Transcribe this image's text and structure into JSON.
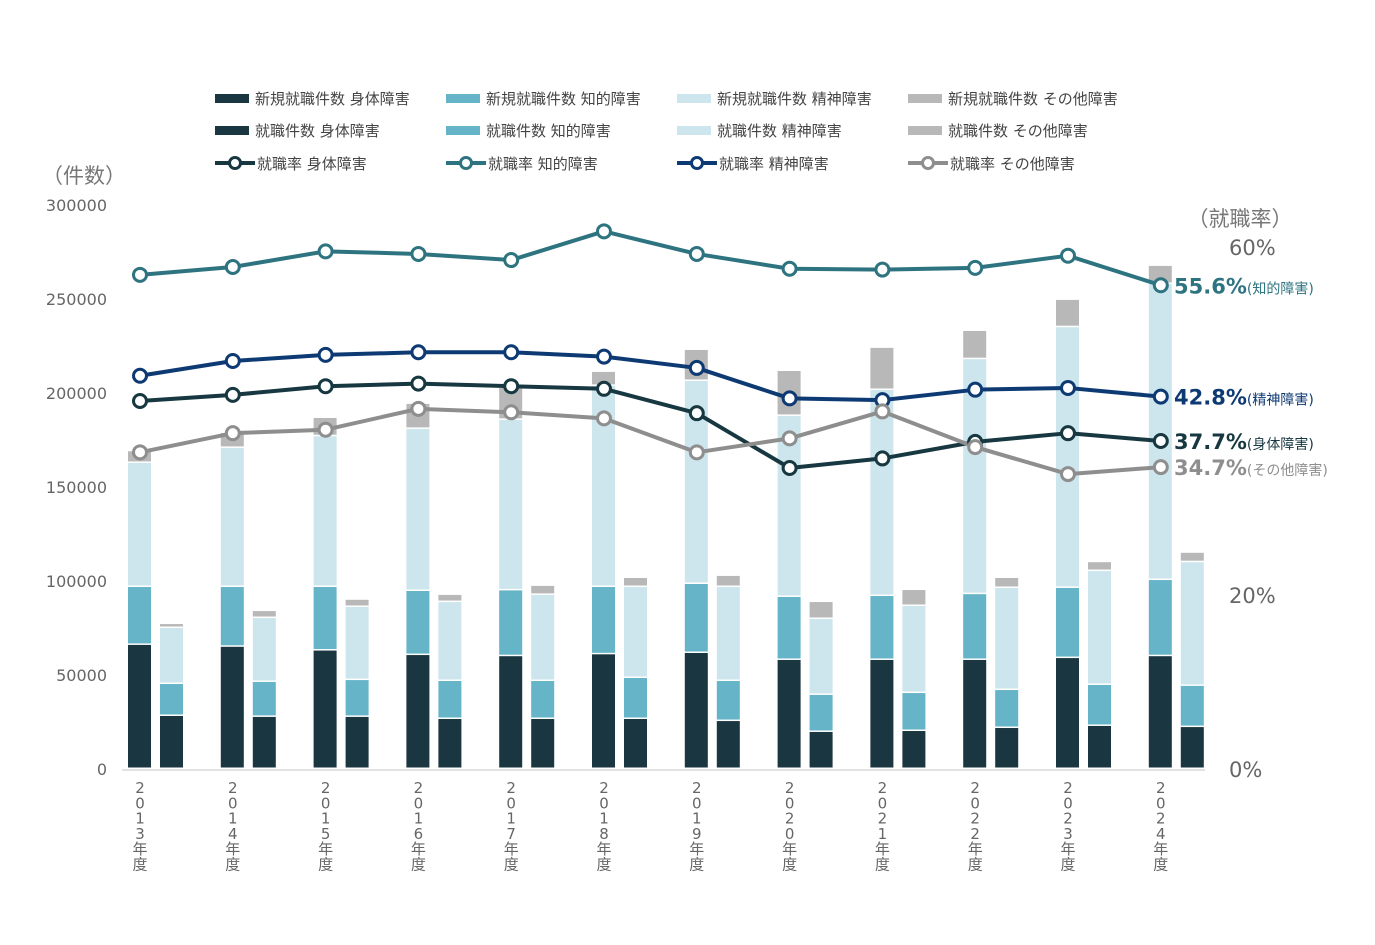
{
  "chart_data": {
    "type": "bar",
    "subtype": "grouped-stacked-bar-with-lines",
    "categories": [
      "2013年度",
      "2014年度",
      "2015年度",
      "2016年度",
      "2017年度",
      "2018年度",
      "2019年度",
      "2020年度",
      "2021年度",
      "2022年度",
      "2023年度",
      "2024年度"
    ],
    "left_axis": {
      "label": "（件数）",
      "ylim": [
        0,
        300000
      ],
      "ticks": [
        0,
        50000,
        100000,
        150000,
        200000,
        250000,
        300000
      ]
    },
    "right_axis": {
      "label": "（就職率）",
      "ylim": [
        0,
        60
      ],
      "ticks": [
        {
          "v": 0,
          "label": "0%"
        },
        {
          "v": 20,
          "label": "20%"
        },
        {
          "v": 60,
          "label": "60%"
        }
      ]
    },
    "stack_groups": [
      {
        "name": "新規就職件数",
        "series": [
          {
            "name": "新規就職件数 身体障害",
            "color": "#1a3640",
            "values": [
              66000,
              65000,
              63000,
              60600,
              60000,
              61000,
              61700,
              58000,
              58000,
              58000,
              59000,
              60000
            ]
          },
          {
            "name": "新規就職件数 知的障害",
            "color": "#66b4c8",
            "values": [
              30800,
              31800,
              33800,
              34100,
              35000,
              35800,
              36700,
              33500,
              34000,
              35000,
              37300,
              40500
            ]
          },
          {
            "name": "新規就職件数 精神障害",
            "color": "#cde6ed",
            "values": [
              66000,
              74000,
              80200,
              86200,
              90700,
              107000,
              108000,
              96300,
              109600,
              125000,
              138700,
              157500
            ]
          },
          {
            "name": "新規就職件数 その他障害",
            "color": "#b8b8b8",
            "values": [
              6200,
              7900,
              9700,
              13300,
              17000,
              7400,
              16500,
              23900,
              22400,
              15000,
              14500,
              9600
            ]
          }
        ]
      },
      {
        "name": "就職件数",
        "series": [
          {
            "name": "就職件数 身体障害",
            "color": "#1a3640",
            "values": [
              28200,
              27700,
              27700,
              26600,
              26600,
              26600,
              25500,
              19700,
              20200,
              21800,
              22900,
              22300
            ]
          },
          {
            "name": "就職件数 知的障害",
            "color": "#66b4c8",
            "values": [
              17000,
              18600,
              19600,
              20200,
              20200,
              21800,
              21300,
              19700,
              20200,
              20200,
              21800,
              21900
            ]
          },
          {
            "name": "就職件数 精神障害",
            "color": "#cde6ed",
            "values": [
              29800,
              34000,
              38900,
              42000,
              45800,
              48400,
              50000,
              40400,
              46300,
              54300,
              60600,
              65800
            ]
          },
          {
            "name": "就職件数 その他障害",
            "color": "#b8b8b8",
            "values": [
              2100,
              3700,
              3800,
              3800,
              4800,
              4800,
              5900,
              9000,
              8500,
              5300,
              4700,
              5000
            ]
          }
        ]
      }
    ],
    "lines": [
      {
        "name": "就職率 身体障害",
        "color": "#173840",
        "values": [
          42.3,
          43.0,
          44.0,
          44.3,
          44.0,
          43.7,
          40.9,
          34.6,
          35.7,
          37.6,
          38.6,
          37.7
        ],
        "end_label": "37.7%",
        "end_suffix": "(身体障害)"
      },
      {
        "name": "就職率 知的障害",
        "color": "#2e7480",
        "values": [
          56.8,
          57.7,
          59.5,
          59.2,
          58.5,
          61.8,
          59.2,
          57.5,
          57.4,
          57.6,
          59.0,
          55.6
        ],
        "end_label": "55.6%",
        "end_suffix": "(知的障害)"
      },
      {
        "name": "就職率 精神障害",
        "color": "#0e3a73",
        "values": [
          45.2,
          46.9,
          47.6,
          47.9,
          47.9,
          47.4,
          46.1,
          42.6,
          42.4,
          43.6,
          43.8,
          42.8
        ],
        "end_label": "42.8%",
        "end_suffix": "(精神障害)"
      },
      {
        "name": "就職率 その他障害",
        "color": "#8e8e8e",
        "values": [
          36.4,
          38.6,
          39.0,
          41.4,
          41.0,
          40.3,
          36.4,
          38.0,
          41.1,
          37.0,
          33.9,
          34.7
        ],
        "end_label": "34.7%",
        "end_suffix": "(その他障害)"
      }
    ],
    "legend_position": "top",
    "grid": false
  },
  "legend": {
    "rows": [
      [
        {
          "label": "新規就職件数 身体障害",
          "kind": "bar",
          "color": "#1a3640"
        },
        {
          "label": "新規就職件数 知的障害",
          "kind": "bar",
          "color": "#66b4c8"
        },
        {
          "label": "新規就職件数 精神障害",
          "kind": "bar",
          "color": "#cde6ed"
        },
        {
          "label": "新規就職件数 その他障害",
          "kind": "bar",
          "color": "#b8b8b8"
        }
      ],
      [
        {
          "label": "就職件数 身体障害",
          "kind": "bar",
          "color": "#1a3640"
        },
        {
          "label": "就職件数 知的障害",
          "kind": "bar",
          "color": "#66b4c8"
        },
        {
          "label": "就職件数 精神障害",
          "kind": "bar",
          "color": "#cde6ed"
        },
        {
          "label": "就職件数 その他障害",
          "kind": "bar",
          "color": "#b8b8b8"
        }
      ],
      [
        {
          "label": "就職率 身体障害",
          "kind": "line",
          "color": "#173840"
        },
        {
          "label": "就職率 知的障害",
          "kind": "line",
          "color": "#2e7480"
        },
        {
          "label": "就職率 精神障害",
          "kind": "line",
          "color": "#0e3a73"
        },
        {
          "label": "就職率 その他障害",
          "kind": "line",
          "color": "#8e8e8e"
        }
      ]
    ]
  }
}
